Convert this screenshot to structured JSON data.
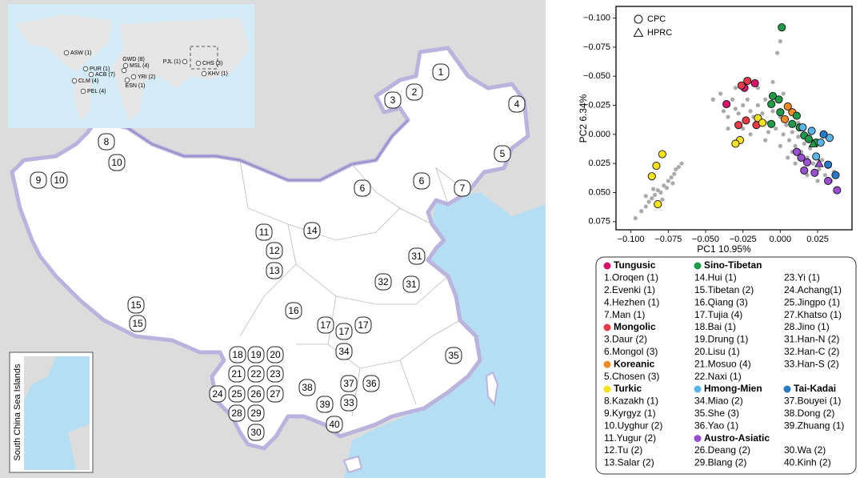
{
  "map": {
    "inset_labels": [
      "ASW (1)",
      "PUR (1)",
      "ACB (7)",
      "CLM (4)",
      "PEL (4)",
      "GWD (8)",
      "MSL (4)",
      "YRI (2)",
      "ESN (1)",
      "PJL (1)",
      "CHS (3)",
      "KHV (1)"
    ],
    "sea_label": "South China Sea Islands",
    "sites": [
      "1",
      "2",
      "3",
      "4",
      "5",
      "6",
      "6",
      "7",
      "8",
      "9",
      "10",
      "10",
      "11",
      "12",
      "13",
      "14",
      "15",
      "15",
      "16",
      "17",
      "17",
      "17",
      "18",
      "19",
      "20",
      "21",
      "22",
      "23",
      "24",
      "25",
      "26",
      "27",
      "28",
      "29",
      "30",
      "31",
      "31",
      "32",
      "33",
      "34",
      "35",
      "36",
      "37",
      "38",
      "39",
      "40"
    ]
  },
  "chart_data": {
    "type": "scatter",
    "xlabel": "PC1  10.95%",
    "ylabel": "PC2  6.34%",
    "xlim": [
      -0.11,
      0.048
    ],
    "ylim": [
      -0.11,
      0.082
    ],
    "y_inverted": true,
    "xticks": [
      {
        "value": -0.1,
        "label": "−0.100"
      },
      {
        "value": -0.075,
        "label": "−0.075"
      },
      {
        "value": -0.05,
        "label": "−0.050"
      },
      {
        "value": -0.025,
        "label": "−0.025"
      },
      {
        "value": 0,
        "label": "0.000"
      },
      {
        "value": 0.025,
        "label": "0.025"
      }
    ],
    "yticks": [
      {
        "value": -0.1,
        "label": "−0.100"
      },
      {
        "value": -0.075,
        "label": "−0.075"
      },
      {
        "value": -0.05,
        "label": "−0.050"
      },
      {
        "value": -0.025,
        "label": "−0.025"
      },
      {
        "value": 0,
        "label": "0.000"
      },
      {
        "value": 0.025,
        "label": "0.025"
      },
      {
        "value": 0.05,
        "label": "0.050"
      },
      {
        "value": 0.075,
        "label": "0.075"
      }
    ],
    "marker_legend": [
      {
        "label": "CPC",
        "marker": "circle"
      },
      {
        "label": "HPRC",
        "marker": "triangle"
      }
    ],
    "series": [
      {
        "color": "#aaaaaa",
        "x": [
          -0.097,
          -0.093,
          -0.09,
          -0.088,
          -0.086,
          -0.084,
          -0.082,
          -0.08,
          -0.078,
          -0.076,
          -0.075,
          -0.073,
          -0.071,
          -0.07,
          -0.068,
          -0.085,
          -0.079,
          -0.072,
          -0.066,
          -0.09,
          -0.045,
          -0.04,
          -0.038,
          -0.035,
          -0.032,
          -0.03,
          -0.028,
          -0.025,
          -0.022,
          -0.02,
          -0.018,
          -0.015,
          -0.012,
          -0.01,
          -0.008,
          -0.005,
          -0.003,
          0.0,
          0.002,
          0.004,
          0.006,
          0.008,
          0.01,
          0.012,
          0.014,
          0.016,
          0.018,
          0.02,
          0.022,
          0.024,
          0.026,
          0.028,
          0.03,
          0.032,
          0.034,
          0.036,
          -0.02,
          -0.01,
          0.0,
          0.005,
          0.01,
          0.015,
          -0.025,
          -0.015,
          -0.005,
          0.002,
          -0.03,
          -0.008,
          0.008,
          0.018,
          0.025,
          0.012,
          0.02,
          -0.035,
          0.004,
          0.0,
          -0.002
        ],
        "y": [
          0.072,
          0.066,
          0.062,
          0.058,
          0.055,
          0.052,
          0.048,
          0.05,
          0.044,
          0.046,
          0.04,
          0.037,
          0.034,
          0.03,
          0.028,
          0.047,
          0.056,
          0.042,
          0.025,
          0.053,
          -0.03,
          -0.035,
          -0.02,
          -0.015,
          -0.03,
          -0.022,
          -0.018,
          -0.025,
          -0.03,
          -0.02,
          -0.015,
          -0.025,
          -0.018,
          -0.03,
          -0.01,
          -0.02,
          -0.005,
          -0.015,
          0.0,
          -0.008,
          0.005,
          -0.002,
          0.01,
          0.002,
          0.015,
          0.008,
          0.02,
          0.012,
          0.025,
          0.018,
          0.03,
          0.022,
          0.035,
          0.028,
          0.04,
          0.032,
          0.0,
          0.005,
          0.01,
          0.02,
          0.025,
          0.03,
          -0.005,
          -0.04,
          -0.045,
          -0.035,
          -0.04,
          -0.002,
          0.015,
          0.035,
          0.04,
          -0.01,
          0.0,
          -0.005,
          -0.025,
          -0.08,
          -0.07
        ]
      },
      {
        "name": "Tungusic",
        "color": "#d6146e",
        "x": [
          -0.017,
          -0.036,
          -0.024
        ],
        "y": [
          -0.044,
          -0.026,
          -0.04
        ]
      },
      {
        "name": "Mongolic",
        "color": "#e8394a",
        "x": [
          -0.022,
          -0.026,
          -0.023,
          -0.028,
          -0.016
        ],
        "y": [
          -0.046,
          -0.042,
          -0.012,
          -0.008,
          -0.008
        ]
      },
      {
        "name": "Koreanic",
        "color": "#f08a24",
        "x": [
          0.005,
          0.008,
          0.003
        ],
        "y": [
          -0.024,
          -0.019,
          -0.013
        ]
      },
      {
        "name": "Turkic",
        "color": "#f5e21a",
        "x": [
          -0.079,
          -0.083,
          -0.086,
          -0.082,
          -0.015,
          -0.012,
          -0.027,
          -0.03
        ],
        "y": [
          0.017,
          0.027,
          0.036,
          0.06,
          -0.014,
          -0.01,
          0.005,
          0.008
        ]
      },
      {
        "name": "Sino-Tibetan",
        "color": "#1f9a48",
        "x": [
          0.001,
          -0.005,
          -0.006,
          -0.001,
          0.011,
          0.008,
          0.016,
          0.013,
          0.019,
          0.0,
          -0.006,
          0.024,
          0.022
        ],
        "y": [
          -0.092,
          -0.033,
          -0.026,
          -0.03,
          -0.016,
          -0.009,
          0.001,
          -0.006,
          0.004,
          -0.019,
          -0.009,
          0.007,
          0.008
        ],
        "markers": [
          "circle",
          "circle",
          "circle",
          "circle",
          "circle",
          "circle",
          "circle",
          "circle",
          "circle",
          "circle",
          "circle",
          "circle",
          "triangle"
        ]
      },
      {
        "name": "Hmong-Mien",
        "color": "#5ab4e5",
        "x": [
          0.021,
          0.027,
          0.024,
          0.033,
          0.015
        ],
        "y": [
          -0.003,
          0.007,
          0.019,
          0.003,
          -0.006
        ]
      },
      {
        "name": "Tai-Kadai",
        "color": "#2a78c8",
        "x": [
          0.029,
          0.037,
          0.032
        ],
        "y": [
          0.0,
          0.035,
          0.026
        ]
      },
      {
        "name": "Austro-Asiatic",
        "color": "#9b4fd0",
        "x": [
          0.014,
          0.016,
          0.018,
          0.023,
          0.032,
          0.038,
          0.011,
          0.026
        ],
        "y": [
          0.02,
          0.031,
          0.024,
          0.033,
          0.04,
          0.048,
          0.015,
          0.025
        ],
        "markers": [
          "circle",
          "circle",
          "circle",
          "circle",
          "circle",
          "circle",
          "circle",
          "triangle"
        ]
      }
    ]
  },
  "legend": {
    "columns": [
      [
        {
          "series": 1
        },
        "1.Oroqen (1)",
        "2.Evenki (1)",
        "4.Hezhen (1)",
        "7.Man (1)",
        {
          "series": 2
        },
        "3.Daur (2)",
        "6.Mongol  (3)",
        {
          "series": 3
        },
        "5.Chosen (3)",
        {
          "series": 4
        },
        "8.Kazakh (1)",
        "9.Kyrgyz (1)",
        "10.Uyghur (2)",
        "11.Yugur (2)",
        "12.Tu  (2)",
        "13.Salar (2)"
      ],
      [
        {
          "series": 5
        },
        "14.Hui (1)",
        "15.Tibetan (2)",
        "16.Qiang (3)",
        "17.Tujia  (4)",
        "18.Bai (1)",
        "19.Drung (1)",
        "20.Lisu (1)",
        "21.Mosuo (4)",
        "22.Naxi (1)",
        {
          "series": 6
        },
        "34.Miao (2)",
        "35.She (3)",
        "36.Yao (1)",
        {
          "series": 8
        },
        "26.Deang (2)",
        "29.Blang (2)"
      ],
      [
        null,
        "23.Yi (1)",
        "24.Achang(1)",
        "25.Jingpo (1)",
        "27.Khatso (1)",
        "28.Jino (1)",
        "31.Han-N (2)",
        "32.Han-C (2)",
        "33.Han-S (2)",
        null,
        {
          "series": 7
        },
        "37.Bouyei (1)",
        "38.Dong (2)",
        "39.Zhuang (1)",
        null,
        "30.Wa (2)",
        "40.Kinh (2)"
      ]
    ]
  }
}
